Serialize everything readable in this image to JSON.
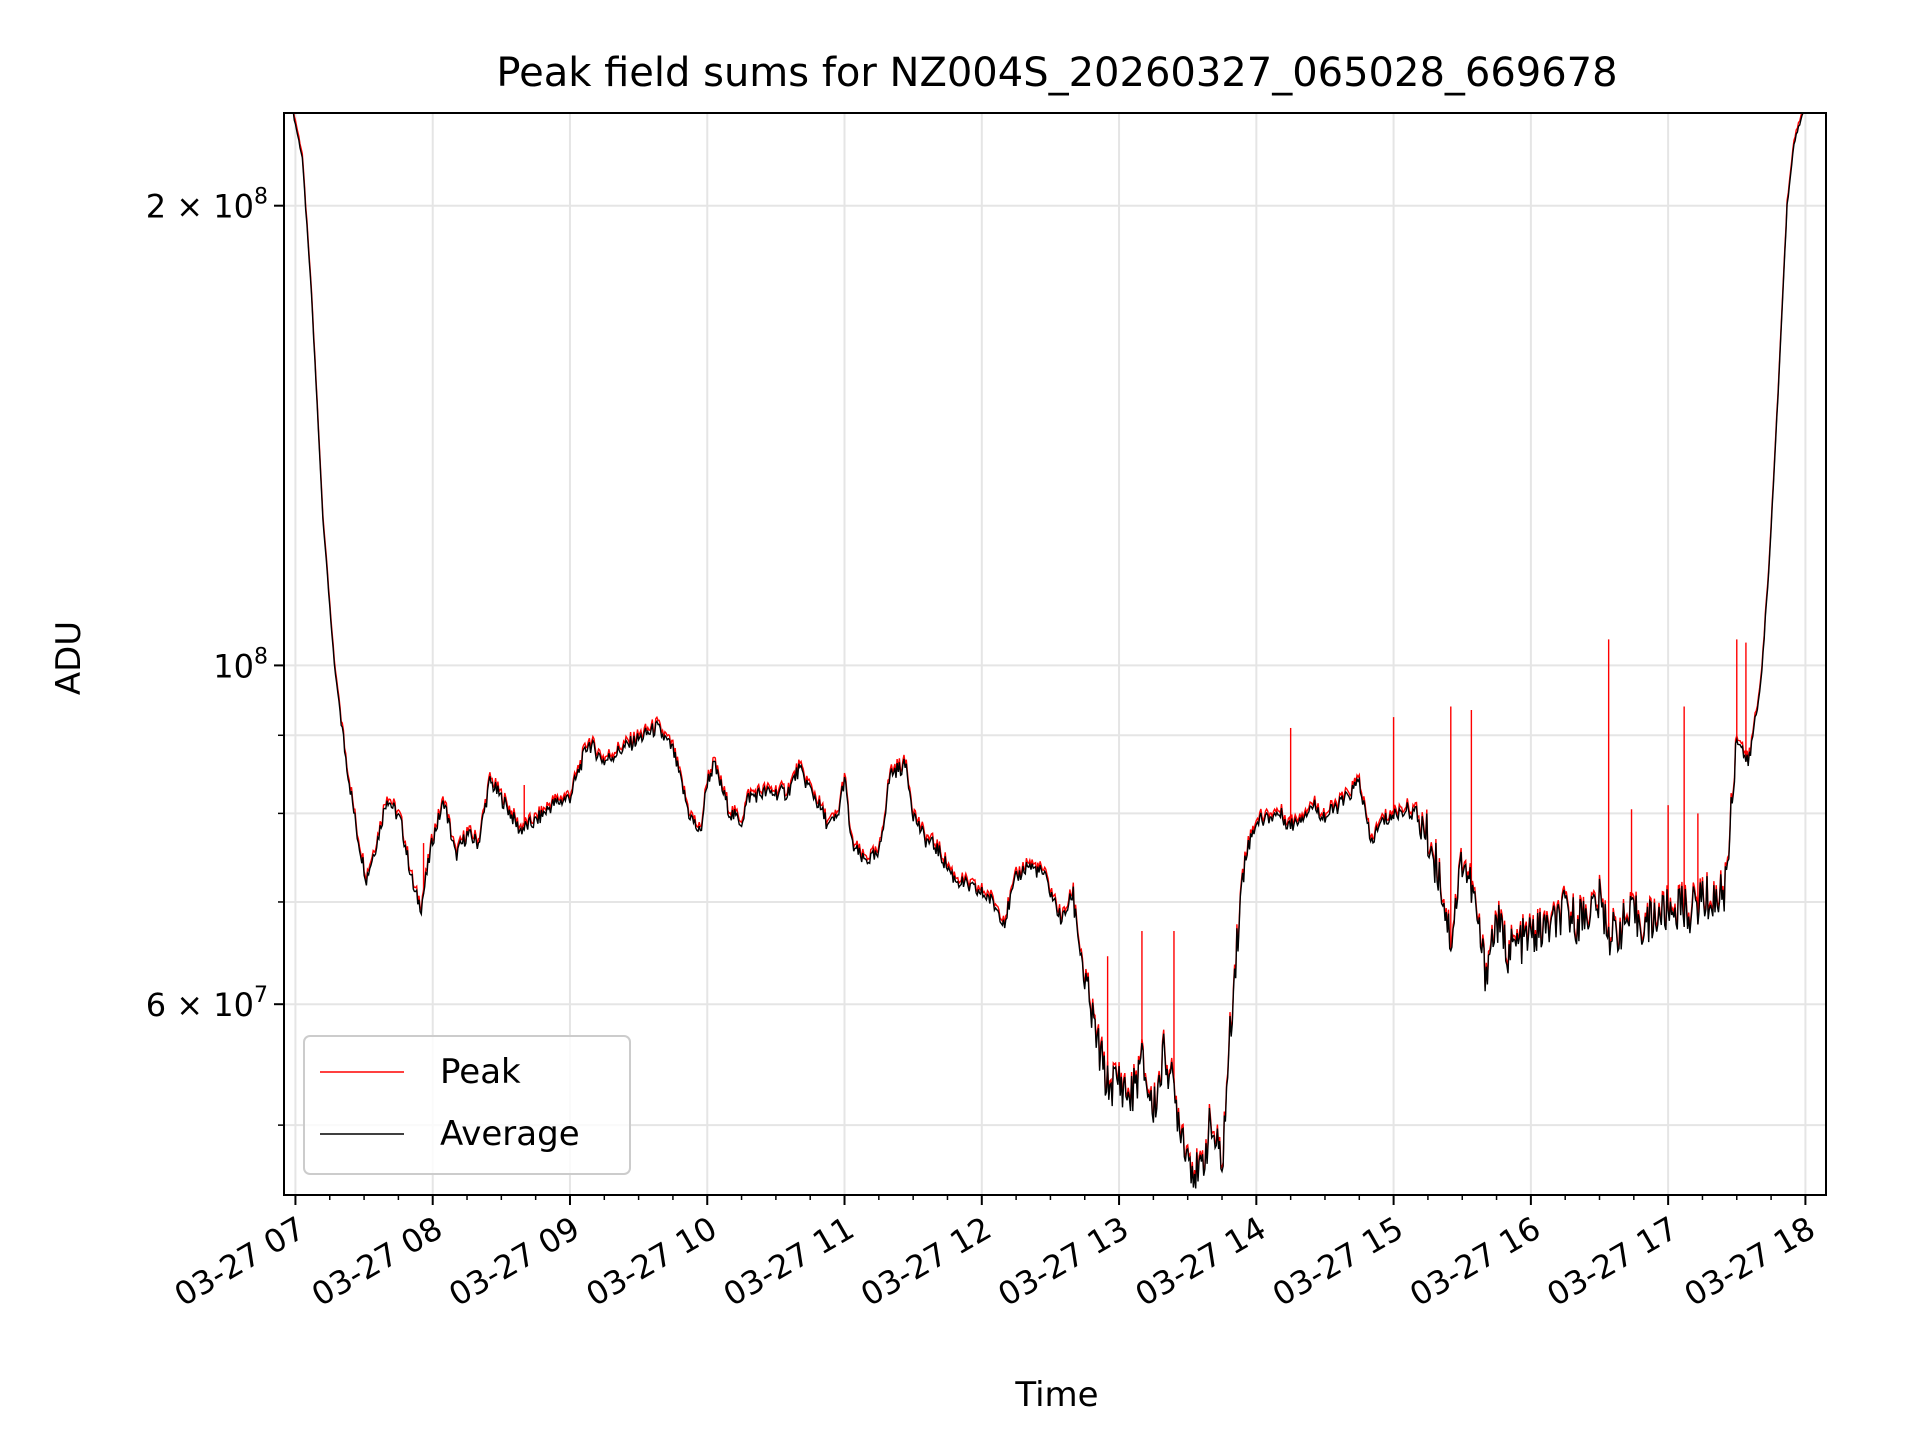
{
  "chart_data": {
    "type": "line",
    "title": "Peak field sums for NZ004S_20260327_065028_669678",
    "xlabel": "Time",
    "ylabel": "ADU",
    "yscale": "log",
    "grid": true,
    "legend_position": "lower-left",
    "x_range": [
      "2026-03-27 06:55",
      "2026-03-27 18:09"
    ],
    "ylim": [
      45000000,
      230000000
    ],
    "x_ticks": [
      {
        "time": "2026-03-27 07:00",
        "label": "03-27 07"
      },
      {
        "time": "2026-03-27 08:00",
        "label": "03-27 08"
      },
      {
        "time": "2026-03-27 09:00",
        "label": "03-27 09"
      },
      {
        "time": "2026-03-27 10:00",
        "label": "03-27 10"
      },
      {
        "time": "2026-03-27 11:00",
        "label": "03-27 11"
      },
      {
        "time": "2026-03-27 12:00",
        "label": "03-27 12"
      },
      {
        "time": "2026-03-27 13:00",
        "label": "03-27 13"
      },
      {
        "time": "2026-03-27 14:00",
        "label": "03-27 14"
      },
      {
        "time": "2026-03-27 15:00",
        "label": "03-27 15"
      },
      {
        "time": "2026-03-27 16:00",
        "label": "03-27 16"
      },
      {
        "time": "2026-03-27 17:00",
        "label": "03-27 17"
      },
      {
        "time": "2026-03-27 18:00",
        "label": "03-27 18"
      }
    ],
    "y_major_ticks": [
      {
        "value": 60000000,
        "mantissa": "6 × 10",
        "exp": "7"
      },
      {
        "value": 100000000,
        "mantissa": "10",
        "exp": "8"
      },
      {
        "value": 200000000,
        "mantissa": "2 × 10",
        "exp": "8"
      }
    ],
    "y_minor_grid": [
      50000000,
      70000000,
      80000000,
      90000000
    ],
    "colors": {
      "peak": "#ff0000",
      "average": "#000000",
      "grid": "#e5e5e5"
    },
    "series": [
      {
        "name": "Average",
        "color": "#000000",
        "points": [
          [
            "2026-03-27 06:59",
            230000000
          ],
          [
            "2026-03-27 07:03",
            215000000
          ],
          [
            "2026-03-27 07:07",
            175000000
          ],
          [
            "2026-03-27 07:12",
            125000000
          ],
          [
            "2026-03-27 07:17",
            100000000
          ],
          [
            "2026-03-27 07:22",
            87000000
          ],
          [
            "2026-03-27 07:27",
            77500000
          ],
          [
            "2026-03-27 07:31",
            72500000
          ],
          [
            "2026-03-27 07:36",
            77000000
          ],
          [
            "2026-03-27 07:40",
            82000000
          ],
          [
            "2026-03-27 07:46",
            79000000
          ],
          [
            "2026-03-27 07:52",
            71000000
          ],
          [
            "2026-03-27 07:55",
            69500000
          ],
          [
            "2026-03-27 08:00",
            77000000
          ],
          [
            "2026-03-27 08:05",
            81500000
          ],
          [
            "2026-03-27 08:10",
            75000000
          ],
          [
            "2026-03-27 08:15",
            77500000
          ],
          [
            "2026-03-27 08:20",
            76500000
          ],
          [
            "2026-03-27 08:25",
            84000000
          ],
          [
            "2026-03-27 08:32",
            81000000
          ],
          [
            "2026-03-27 08:38",
            78000000
          ],
          [
            "2026-03-27 08:45",
            79000000
          ],
          [
            "2026-03-27 08:52",
            81000000
          ],
          [
            "2026-03-27 09:00",
            82000000
          ],
          [
            "2026-03-27 09:08",
            89000000
          ],
          [
            "2026-03-27 09:15",
            86500000
          ],
          [
            "2026-03-27 09:22",
            88000000
          ],
          [
            "2026-03-27 09:30",
            89500000
          ],
          [
            "2026-03-27 09:38",
            91000000
          ],
          [
            "2026-03-27 09:45",
            88000000
          ],
          [
            "2026-03-27 09:52",
            80000000
          ],
          [
            "2026-03-27 09:57",
            77500000
          ],
          [
            "2026-03-27 10:00",
            84000000
          ],
          [
            "2026-03-27 10:03",
            86000000
          ],
          [
            "2026-03-27 10:10",
            80000000
          ],
          [
            "2026-03-27 10:15",
            79000000
          ],
          [
            "2026-03-27 10:18",
            82000000
          ],
          [
            "2026-03-27 10:25",
            82500000
          ],
          [
            "2026-03-27 10:35",
            82500000
          ],
          [
            "2026-03-27 10:40",
            85500000
          ],
          [
            "2026-03-27 10:47",
            82000000
          ],
          [
            "2026-03-27 10:53",
            78500000
          ],
          [
            "2026-03-27 10:57",
            79500000
          ],
          [
            "2026-03-27 11:00",
            84500000
          ],
          [
            "2026-03-27 11:03",
            76500000
          ],
          [
            "2026-03-27 11:08",
            74500000
          ],
          [
            "2026-03-27 11:15",
            75000000
          ],
          [
            "2026-03-27 11:20",
            85000000
          ],
          [
            "2026-03-27 11:27",
            86000000
          ],
          [
            "2026-03-27 11:30",
            80000000
          ],
          [
            "2026-03-27 11:35",
            77000000
          ],
          [
            "2026-03-27 11:40",
            76000000
          ],
          [
            "2026-03-27 11:48",
            72500000
          ],
          [
            "2026-03-27 11:55",
            71500000
          ],
          [
            "2026-03-27 12:03",
            70500000
          ],
          [
            "2026-03-27 12:10",
            68000000
          ],
          [
            "2026-03-27 12:15",
            72500000
          ],
          [
            "2026-03-27 12:20",
            74000000
          ],
          [
            "2026-03-27 12:27",
            73000000
          ],
          [
            "2026-03-27 12:35",
            68000000
          ],
          [
            "2026-03-27 12:40",
            71000000
          ],
          [
            "2026-03-27 12:45",
            62000000
          ],
          [
            "2026-03-27 12:50",
            57000000
          ],
          [
            "2026-03-27 12:55",
            53000000
          ],
          [
            "2026-03-27 13:00",
            53500000
          ],
          [
            "2026-03-27 13:05",
            52000000
          ],
          [
            "2026-03-27 13:10",
            55000000
          ],
          [
            "2026-03-27 13:15",
            51000000
          ],
          [
            "2026-03-27 13:20",
            56000000
          ],
          [
            "2026-03-27 13:25",
            51500000
          ],
          [
            "2026-03-27 13:30",
            48000000
          ],
          [
            "2026-03-27 13:35",
            46000000
          ],
          [
            "2026-03-27 13:40",
            50000000
          ],
          [
            "2026-03-27 13:45",
            47000000
          ],
          [
            "2026-03-27 13:50",
            62000000
          ],
          [
            "2026-03-27 13:55",
            75000000
          ],
          [
            "2026-03-27 14:00",
            79000000
          ],
          [
            "2026-03-27 14:10",
            80000000
          ],
          [
            "2026-03-27 14:15",
            78500000
          ],
          [
            "2026-03-27 14:25",
            81000000
          ],
          [
            "2026-03-27 14:30",
            79500000
          ],
          [
            "2026-03-27 14:40",
            82000000
          ],
          [
            "2026-03-27 14:45",
            84000000
          ],
          [
            "2026-03-27 14:50",
            76500000
          ],
          [
            "2026-03-27 14:55",
            79000000
          ],
          [
            "2026-03-27 15:05",
            80500000
          ],
          [
            "2026-03-27 15:10",
            80000000
          ],
          [
            "2026-03-27 15:15",
            77000000
          ],
          [
            "2026-03-27 15:20",
            73000000
          ],
          [
            "2026-03-27 15:25",
            66000000
          ],
          [
            "2026-03-27 15:30",
            75000000
          ],
          [
            "2026-03-27 15:35",
            70500000
          ],
          [
            "2026-03-27 15:40",
            63000000
          ],
          [
            "2026-03-27 15:45",
            68000000
          ],
          [
            "2026-03-27 15:50",
            65000000
          ],
          [
            "2026-03-27 16:00",
            66500000
          ],
          [
            "2026-03-27 16:10",
            67500000
          ],
          [
            "2026-03-27 16:15",
            69000000
          ],
          [
            "2026-03-27 16:20",
            68000000
          ],
          [
            "2026-03-27 16:30",
            70000000
          ],
          [
            "2026-03-27 16:35",
            66500000
          ],
          [
            "2026-03-27 16:40",
            67500000
          ],
          [
            "2026-03-27 16:45",
            68500000
          ],
          [
            "2026-03-27 16:50",
            67500000
          ],
          [
            "2026-03-27 16:55",
            68500000
          ],
          [
            "2026-03-27 17:00",
            69000000
          ],
          [
            "2026-03-27 17:05",
            69500000
          ],
          [
            "2026-03-27 17:10",
            69000000
          ],
          [
            "2026-03-27 17:15",
            70500000
          ],
          [
            "2026-03-27 17:20",
            70000000
          ],
          [
            "2026-03-27 17:25",
            71500000
          ],
          [
            "2026-03-27 17:30",
            90000000
          ],
          [
            "2026-03-27 17:35",
            86000000
          ],
          [
            "2026-03-27 17:40",
            96000000
          ],
          [
            "2026-03-27 17:44",
            115000000
          ],
          [
            "2026-03-27 17:48",
            150000000
          ],
          [
            "2026-03-27 17:52",
            200000000
          ],
          [
            "2026-03-27 17:55",
            220000000
          ],
          [
            "2026-03-27 17:59",
            230000000
          ]
        ]
      },
      {
        "name": "Peak",
        "color": "#ff0000",
        "spikes": [
          [
            "2026-03-27 07:56",
            76500000
          ],
          [
            "2026-03-27 08:40",
            83500000
          ],
          [
            "2026-03-27 12:55",
            64500000
          ],
          [
            "2026-03-27 13:10",
            67000000
          ],
          [
            "2026-03-27 13:24",
            67000000
          ],
          [
            "2026-03-27 14:15",
            91000000
          ],
          [
            "2026-03-27 15:00",
            92500000
          ],
          [
            "2026-03-27 15:25",
            94000000
          ],
          [
            "2026-03-27 15:34",
            93500000
          ],
          [
            "2026-03-27 16:34",
            104000000
          ],
          [
            "2026-03-27 16:44",
            80500000
          ],
          [
            "2026-03-27 17:00",
            81000000
          ],
          [
            "2026-03-27 17:07",
            94000000
          ],
          [
            "2026-03-27 17:13",
            80000000
          ],
          [
            "2026-03-27 17:30",
            104000000
          ],
          [
            "2026-03-27 17:34",
            103500000
          ]
        ]
      }
    ]
  }
}
